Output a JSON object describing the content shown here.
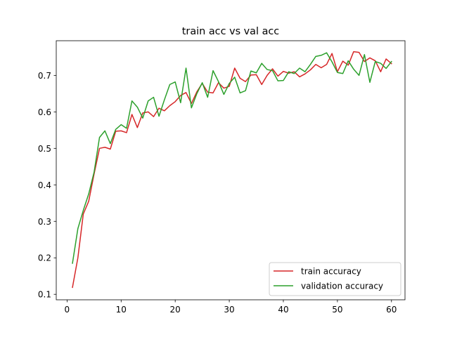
{
  "chart_data": {
    "type": "line",
    "title": "train acc vs val acc",
    "xlabel": "",
    "ylabel": "",
    "xlim": [
      -2,
      62.5
    ],
    "ylim": [
      0.085,
      0.795
    ],
    "xticks": [
      0,
      10,
      20,
      30,
      40,
      50,
      60
    ],
    "yticks": [
      0.1,
      0.2,
      0.3,
      0.4,
      0.5,
      0.6,
      0.7
    ],
    "grid": false,
    "legend_position": "lower right",
    "x": [
      1,
      2,
      3,
      4,
      5,
      6,
      7,
      8,
      9,
      10,
      11,
      12,
      13,
      14,
      15,
      16,
      17,
      18,
      19,
      20,
      21,
      22,
      23,
      24,
      25,
      26,
      27,
      28,
      29,
      30,
      31,
      32,
      33,
      34,
      35,
      36,
      37,
      38,
      39,
      40,
      41,
      42,
      43,
      44,
      45,
      46,
      47,
      48,
      49,
      50,
      51,
      52,
      53,
      54,
      55,
      56,
      57,
      58,
      59,
      60
    ],
    "series": [
      {
        "name": "train accuracy",
        "color": "#d62728",
        "values": [
          0.119,
          0.2,
          0.32,
          0.355,
          0.43,
          0.5,
          0.503,
          0.498,
          0.547,
          0.548,
          0.543,
          0.593,
          0.557,
          0.597,
          0.6,
          0.587,
          0.61,
          0.603,
          0.617,
          0.628,
          0.645,
          0.653,
          0.623,
          0.655,
          0.678,
          0.654,
          0.652,
          0.68,
          0.665,
          0.67,
          0.72,
          0.692,
          0.683,
          0.701,
          0.702,
          0.675,
          0.7,
          0.718,
          0.698,
          0.711,
          0.706,
          0.71,
          0.696,
          0.704,
          0.715,
          0.73,
          0.721,
          0.73,
          0.76,
          0.71,
          0.739,
          0.728,
          0.765,
          0.763,
          0.738,
          0.748,
          0.74,
          0.71,
          0.745,
          0.732
        ]
      },
      {
        "name": "validation accuracy",
        "color": "#2ca02c",
        "values": [
          0.185,
          0.28,
          0.33,
          0.375,
          0.435,
          0.53,
          0.548,
          0.513,
          0.552,
          0.565,
          0.555,
          0.63,
          0.613,
          0.583,
          0.63,
          0.64,
          0.588,
          0.633,
          0.675,
          0.682,
          0.625,
          0.72,
          0.611,
          0.65,
          0.68,
          0.64,
          0.713,
          0.683,
          0.648,
          0.678,
          0.695,
          0.652,
          0.658,
          0.712,
          0.707,
          0.733,
          0.716,
          0.713,
          0.685,
          0.686,
          0.71,
          0.705,
          0.72,
          0.71,
          0.73,
          0.752,
          0.755,
          0.762,
          0.737,
          0.708,
          0.705,
          0.74,
          0.717,
          0.7,
          0.757,
          0.681,
          0.738,
          0.733,
          0.719,
          0.738
        ]
      }
    ]
  }
}
